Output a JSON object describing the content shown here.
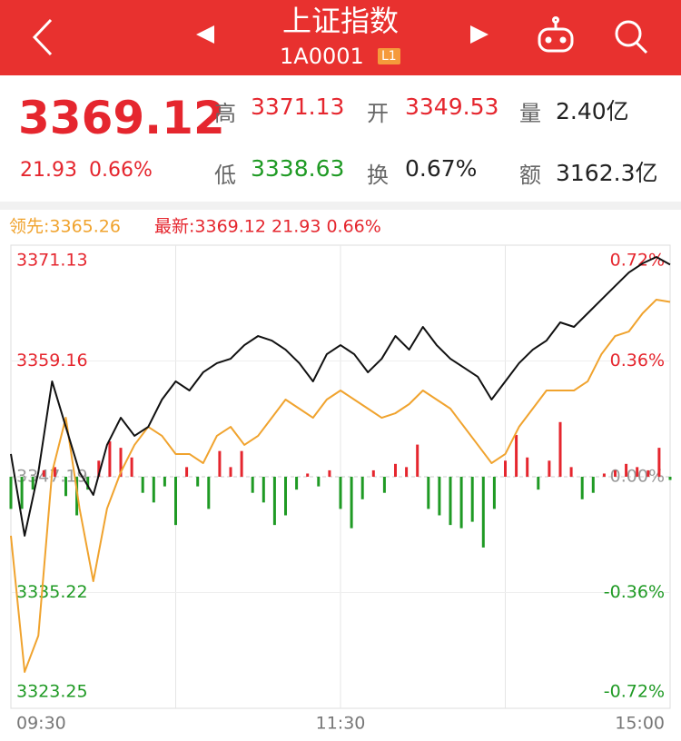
{
  "header": {
    "title": "上证指数",
    "code": "1A0001",
    "level": "L1"
  },
  "quote": {
    "price": "3369.12",
    "change": "21.93",
    "pct": "0.66%",
    "high_label": "高",
    "high": "3371.13",
    "open_label": "开",
    "open": "3349.53",
    "volume_label": "量",
    "volume": "2.40亿",
    "low_label": "低",
    "low": "3338.63",
    "turnover_label": "换",
    "turnover": "0.67%",
    "amount_label": "额",
    "amount": "3162.3亿"
  },
  "chart_data": {
    "type": "line",
    "legend_leading": "领先:3365.26",
    "legend_latest": "最新:3369.12 21.93 0.66%",
    "x": [
      0,
      5,
      10,
      15,
      20,
      25,
      30,
      35,
      40,
      45,
      50,
      55,
      60,
      65,
      70,
      75,
      80,
      85,
      90,
      95,
      100,
      105,
      110,
      115,
      120,
      125,
      130,
      135,
      140,
      145,
      150,
      155,
      160,
      165,
      170,
      175,
      180,
      185,
      190,
      195,
      200,
      205,
      210,
      215,
      220,
      225,
      230,
      235,
      240
    ],
    "xlim": [
      0,
      240
    ],
    "xticks": [
      {
        "value": 0,
        "label": "09:30"
      },
      {
        "value": 120,
        "label": "11:30"
      },
      {
        "value": 240,
        "label": "15:00"
      }
    ],
    "xgrid": [
      60,
      120,
      180
    ],
    "ylim": [
      3323.25,
      3371.13
    ],
    "yticks": [
      3371.13,
      3359.16,
      3347.19,
      3335.22,
      3323.25
    ],
    "y2lim": [
      -0.72,
      0.72
    ],
    "y2ticks": [
      {
        "value": 0.72,
        "label": "0.72%"
      },
      {
        "value": 0.36,
        "label": "0.36%"
      },
      {
        "value": 0,
        "label": "0.00%"
      },
      {
        "value": -0.36,
        "label": "-0.36%"
      },
      {
        "value": -0.72,
        "label": "-0.72%"
      }
    ],
    "up_color": "#e5262e",
    "down_color": "#1f9a24",
    "series": [
      {
        "color": "#111111",
        "values": [
          3349.54,
          3341.09,
          3347.66,
          3357.05,
          3352.35,
          3347.66,
          3345.31,
          3350.48,
          3353.29,
          3351.42,
          3352.35,
          3355.17,
          3357.05,
          3356.11,
          3357.99,
          3358.93,
          3359.39,
          3360.8,
          3361.74,
          3361.27,
          3360.33,
          3358.93,
          3357.05,
          3359.86,
          3360.8,
          3359.86,
          3357.99,
          3359.39,
          3361.74,
          3360.33,
          3362.68,
          3360.8,
          3359.39,
          3358.46,
          3357.52,
          3355.17,
          3357.05,
          3358.93,
          3360.33,
          3361.27,
          3363.15,
          3362.68,
          3364.09,
          3365.5,
          3366.91,
          3368.31,
          3369.25,
          3369.91,
          3369.12
        ]
      },
      {
        "color": "#f0a32e",
        "values": [
          3341.09,
          3327.01,
          3330.76,
          3347.66,
          3353.29,
          3343.9,
          3336.39,
          3343.9,
          3347.66,
          3350.48,
          3352.35,
          3351.42,
          3349.54,
          3349.54,
          3348.6,
          3351.42,
          3352.35,
          3350.48,
          3351.42,
          3353.29,
          3355.17,
          3354.23,
          3353.29,
          3355.17,
          3356.11,
          3355.17,
          3354.23,
          3353.29,
          3353.76,
          3354.7,
          3356.11,
          3355.17,
          3354.23,
          3352.35,
          3350.48,
          3348.6,
          3349.54,
          3352.35,
          3354.23,
          3356.11,
          3356.11,
          3356.11,
          3357.05,
          3359.86,
          3361.74,
          3362.21,
          3364.09,
          3365.5,
          3365.26
        ]
      },
      {
        "type": "bar",
        "axis": "y2",
        "x": [
          0,
          4,
          8,
          12,
          16,
          20,
          24,
          28,
          32,
          36,
          40,
          44,
          48,
          52,
          56,
          60,
          64,
          68,
          72,
          76,
          80,
          84,
          88,
          92,
          96,
          100,
          104,
          108,
          112,
          116,
          120,
          124,
          128,
          132,
          136,
          140,
          144,
          148,
          152,
          156,
          160,
          164,
          168,
          172,
          176,
          180,
          184,
          188,
          192,
          196,
          200,
          204,
          208,
          212,
          216,
          220,
          224,
          228,
          232,
          236,
          240
        ],
        "values": [
          -0.1,
          -0.1,
          -0.04,
          0.02,
          0.03,
          -0.06,
          -0.12,
          -0.04,
          0.05,
          0.11,
          0.09,
          0.06,
          -0.05,
          -0.08,
          -0.03,
          -0.15,
          0.03,
          -0.03,
          -0.1,
          0.08,
          0.03,
          0.08,
          -0.05,
          -0.08,
          -0.15,
          -0.12,
          -0.04,
          0.01,
          -0.03,
          0.02,
          -0.1,
          -0.16,
          -0.07,
          0.02,
          -0.05,
          0.04,
          0.03,
          0.1,
          -0.1,
          -0.12,
          -0.15,
          -0.16,
          -0.14,
          -0.22,
          -0.1,
          0.05,
          0.13,
          0.06,
          -0.04,
          0.05,
          0.17,
          0.03,
          -0.07,
          -0.05,
          0.01,
          0.02,
          0.04,
          0.03,
          0.02,
          0.09,
          -0.01
        ]
      }
    ]
  }
}
